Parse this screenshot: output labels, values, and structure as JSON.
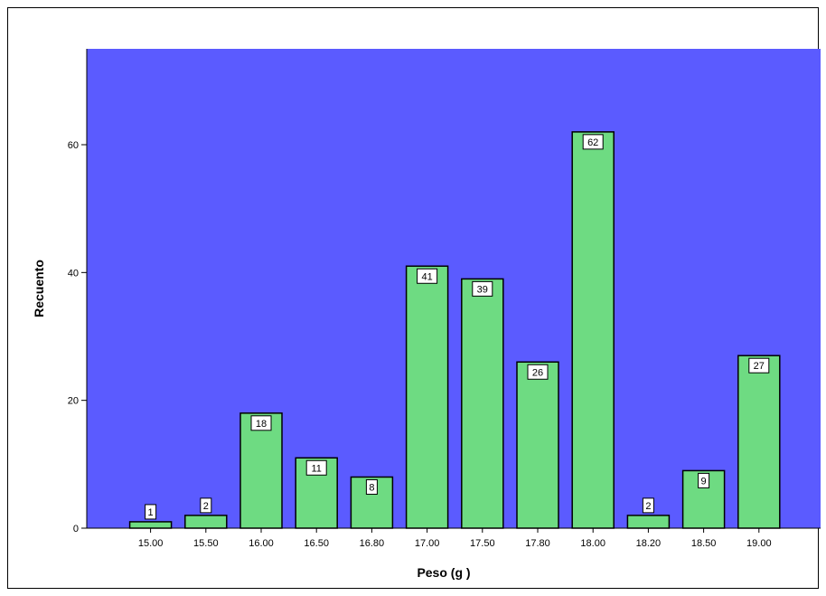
{
  "colors": {
    "plot_background": "#5b5bff",
    "bar_fill": "#6edb82",
    "bar_stroke": "#000000",
    "label_box": "#ffffff"
  },
  "chart_data": {
    "type": "bar",
    "categories": [
      "15.00",
      "15.50",
      "16.00",
      "16.50",
      "16.80",
      "17.00",
      "17.50",
      "17.80",
      "18.00",
      "18.20",
      "18.50",
      "19.00"
    ],
    "values": [
      1,
      2,
      18,
      11,
      8,
      41,
      39,
      26,
      62,
      2,
      9,
      27
    ],
    "data_labels": [
      "1",
      "2",
      "18",
      "11",
      "8",
      "41",
      "39",
      "26",
      "62",
      "2",
      "9",
      "27"
    ],
    "xlabel": "Peso (g )",
    "ylabel": "Recuento",
    "ylim": [
      0,
      75
    ],
    "yticks": [
      0,
      20,
      40,
      60
    ],
    "ytick_labels": [
      "0",
      "20",
      "40",
      "60"
    ],
    "grid": false,
    "legend": "none"
  }
}
